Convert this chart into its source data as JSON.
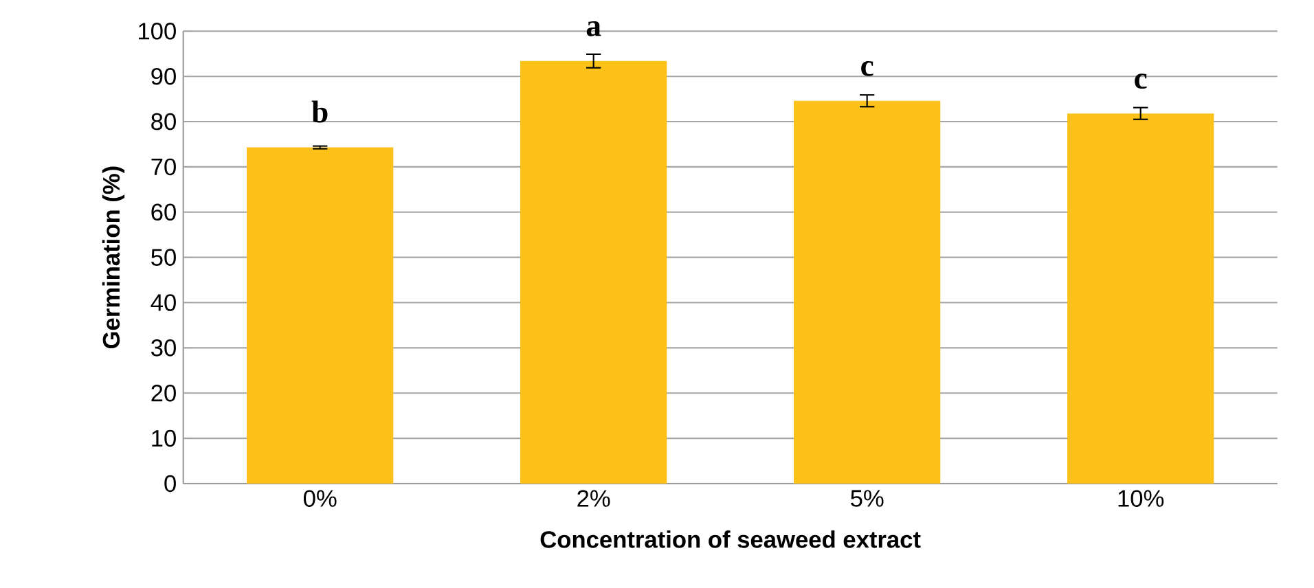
{
  "chart_data": {
    "type": "bar",
    "xlabel": "Concentration of seaweed extract",
    "ylabel": "Germination (%)",
    "categories": [
      "0%",
      "2%",
      "5%",
      "10%"
    ],
    "values": [
      74.3,
      93.4,
      84.6,
      81.8
    ],
    "errors": [
      0.3,
      1.5,
      1.3,
      1.3
    ],
    "color": "#fcc21a",
    "ylim": [
      0,
      100
    ],
    "yticks": [
      0,
      10,
      20,
      30,
      40,
      50,
      60,
      70,
      80,
      90,
      100
    ],
    "grid": "y",
    "annotations": [
      {
        "text": "b",
        "x": "0%",
        "y": 74.3
      },
      {
        "text": "a",
        "x": "2%",
        "y": 93.4
      },
      {
        "text": "c",
        "x": "5%",
        "y": 84.6
      },
      {
        "text": "c",
        "x": "10%",
        "y": 81.8
      }
    ]
  }
}
